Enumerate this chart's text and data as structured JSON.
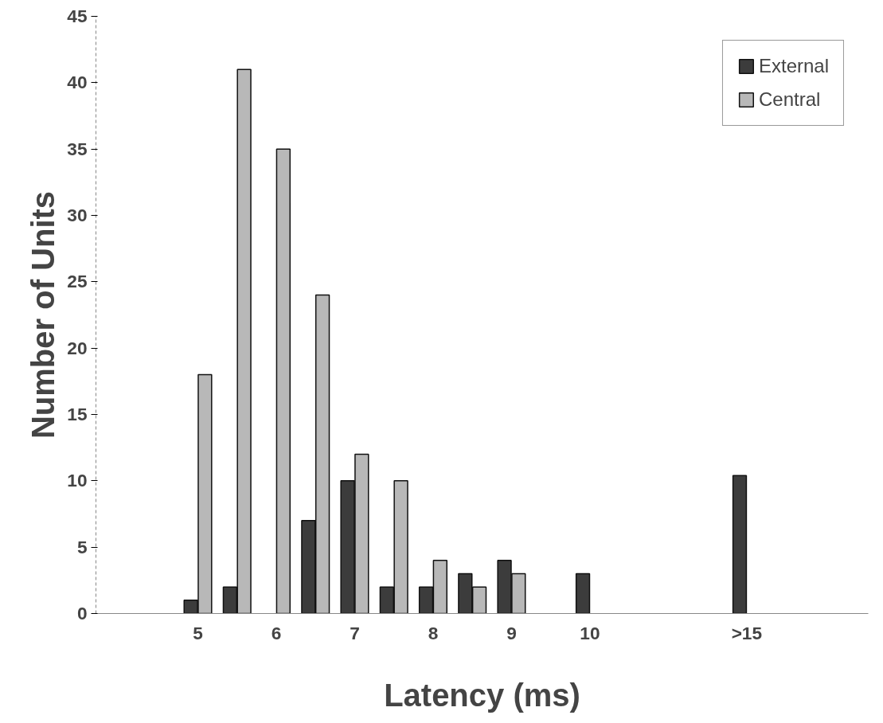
{
  "chart_data": {
    "type": "bar",
    "xlabel": "Latency (ms)",
    "ylabel": "Number of Units",
    "categories": [
      "5",
      null,
      "6",
      null,
      "7",
      null,
      "8",
      null,
      "9",
      null,
      "10",
      null,
      null,
      null,
      ">15"
    ],
    "series": [
      {
        "name": "External",
        "color": "#3c3c3c",
        "values": [
          1,
          2,
          null,
          7,
          10,
          2,
          2,
          3,
          4,
          null,
          3,
          null,
          null,
          null,
          10.4
        ]
      },
      {
        "name": "Central",
        "color": "#b8b8b8",
        "values": [
          18,
          41,
          35,
          24,
          12,
          10,
          4,
          2,
          3,
          null,
          null,
          null,
          null,
          null,
          null
        ]
      }
    ],
    "ylim": [
      0,
      45
    ],
    "yticks": [
      0,
      5,
      10,
      15,
      20,
      25,
      30,
      35,
      40,
      45
    ],
    "grid": false,
    "legend": "top right"
  }
}
